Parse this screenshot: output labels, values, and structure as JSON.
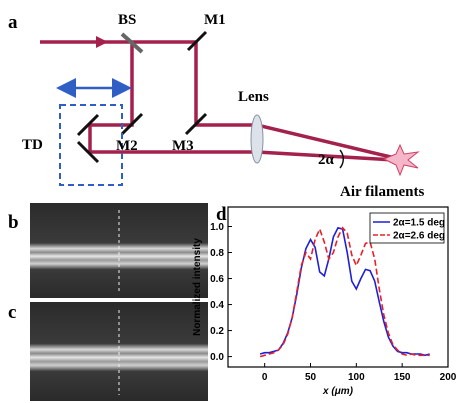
{
  "diagram": {
    "panel_label": "a",
    "bs": "BS",
    "m1": "M1",
    "m2": "M2",
    "m3": "M3",
    "td": "TD",
    "lens": "Lens",
    "angle": "2α",
    "air_filaments": "Air filaments"
  },
  "images": [
    {
      "label": "b"
    },
    {
      "label": "c"
    }
  ],
  "chart_data": {
    "type": "line",
    "panel_label": "d",
    "xlabel": "x (μm)",
    "ylabel": "Normalized intensity",
    "x": [
      -5,
      0,
      5,
      10,
      15,
      20,
      25,
      30,
      35,
      40,
      45,
      50,
      55,
      60,
      65,
      70,
      75,
      80,
      85,
      90,
      95,
      100,
      105,
      110,
      115,
      120,
      125,
      130,
      135,
      140,
      145,
      150,
      155,
      160,
      165,
      170,
      175,
      180
    ],
    "series": [
      {
        "name": "2α=1.5 deg",
        "color": "#1f1fd6",
        "line_style": "solid",
        "values": [
          0.02,
          0.03,
          0.03,
          0.04,
          0.05,
          0.1,
          0.18,
          0.3,
          0.48,
          0.68,
          0.83,
          0.9,
          0.84,
          0.65,
          0.62,
          0.75,
          0.92,
          0.99,
          0.98,
          0.8,
          0.58,
          0.52,
          0.6,
          0.67,
          0.66,
          0.58,
          0.42,
          0.27,
          0.15,
          0.08,
          0.04,
          0.03,
          0.03,
          0.02,
          0.02,
          0.02,
          0.01,
          0.02
        ]
      },
      {
        "name": "2α=2.6 deg",
        "color": "#e8202a",
        "line_style": "dashed",
        "values": [
          0.0,
          0.01,
          0.02,
          0.03,
          0.05,
          0.09,
          0.17,
          0.3,
          0.5,
          0.7,
          0.8,
          0.75,
          0.9,
          0.98,
          0.88,
          0.75,
          0.8,
          0.92,
          0.99,
          0.95,
          0.78,
          0.7,
          0.78,
          0.87,
          0.88,
          0.75,
          0.52,
          0.32,
          0.18,
          0.09,
          0.05,
          0.02,
          0.01,
          0.02,
          0.01,
          0.01,
          0.01,
          0.01
        ]
      }
    ],
    "xlim": [
      -40,
      200
    ],
    "ylim": [
      -0.08,
      1.15
    ],
    "xticks": [
      0,
      50,
      100,
      150,
      200
    ],
    "yticks": [
      {
        "value": 0,
        "label": "0.0"
      },
      0.2,
      0.4,
      0.6,
      0.8,
      {
        "value": 1,
        "label": "1.0"
      }
    ],
    "legend": "upper right"
  }
}
